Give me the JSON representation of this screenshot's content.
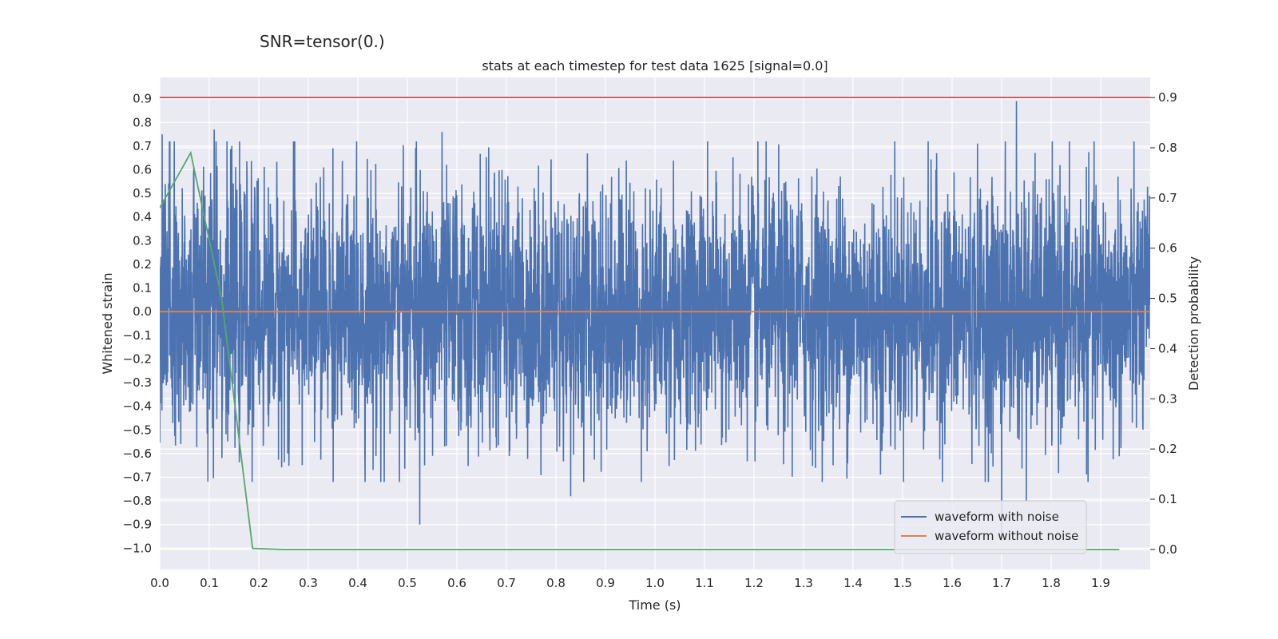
{
  "suptitle": "SNR=tensor(0.)",
  "chart_data": {
    "type": "line",
    "title": "stats at each timestep for test data 1625 [signal=0.0]",
    "xlabel": "Time (s)",
    "ylabel": "Whitened strain",
    "y2label": "Detection probability",
    "xlim": [
      0.0,
      2.0
    ],
    "ylim": [
      -1.09,
      0.99
    ],
    "y2lim": [
      -0.04,
      0.94
    ],
    "x_ticks": [
      0.0,
      0.1,
      0.2,
      0.3,
      0.4,
      0.5,
      0.6,
      0.7,
      0.8,
      0.9,
      1.0,
      1.1,
      1.2,
      1.3,
      1.4,
      1.5,
      1.6,
      1.7,
      1.8,
      1.9
    ],
    "x_tick_labels": [
      "0.0",
      "0.1",
      "0.2",
      "0.3",
      "0.4",
      "0.5",
      "0.6",
      "0.7",
      "0.8",
      "0.9",
      "1.0",
      "1.1",
      "1.2",
      "1.3",
      "1.4",
      "1.5",
      "1.6",
      "1.7",
      "1.8",
      "1.9"
    ],
    "y_ticks": [
      0.9,
      0.8,
      0.7,
      0.6,
      0.5,
      0.4,
      0.3,
      0.2,
      0.1,
      0.0,
      -0.1,
      -0.2,
      -0.3,
      -0.4,
      -0.5,
      -0.6,
      -0.7,
      -0.8,
      -0.9,
      -1.0
    ],
    "y_tick_labels": [
      "0.9",
      "0.8",
      "0.7",
      "0.6",
      "0.5",
      "0.4",
      "0.3",
      "0.2",
      "0.1",
      "0.0",
      "−0.1",
      "−0.2",
      "−0.3",
      "−0.4",
      "−0.5",
      "−0.6",
      "−0.7",
      "−0.8",
      "−0.9",
      "−1.0"
    ],
    "y2_ticks": [
      0.9,
      0.8,
      0.7,
      0.6,
      0.5,
      0.4,
      0.3,
      0.2,
      0.1,
      0.0
    ],
    "y2_tick_labels": [
      "0.9",
      "0.8",
      "0.7",
      "0.6",
      "0.5",
      "0.4",
      "0.3",
      "0.2",
      "0.1",
      "0.0"
    ],
    "grid": true,
    "legend_position": "lower-right",
    "series": [
      {
        "name": "waveform with noise",
        "color": "#4c72b0",
        "axis": "left",
        "x_range": [
          0.0,
          2.0
        ],
        "amplitude_std": 0.27,
        "n_samples": 4096,
        "peaks": [
          {
            "x": 0.005,
            "y": 0.75
          },
          {
            "x": 0.11,
            "y": 0.77
          },
          {
            "x": 0.57,
            "y": 0.76
          },
          {
            "x": 1.73,
            "y": 0.89
          },
          {
            "x": 0.525,
            "y": -0.9
          },
          {
            "x": 1.7,
            "y": -0.97
          },
          {
            "x": 0.83,
            "y": -0.78
          },
          {
            "x": 1.75,
            "y": -0.8
          }
        ]
      },
      {
        "name": "waveform without noise",
        "color": "#dd8452",
        "axis": "left",
        "x": [
          0.0,
          2.0
        ],
        "y": [
          0.0,
          0.0
        ]
      },
      {
        "name": "",
        "color": "#55a868",
        "axis": "right",
        "x": [
          0.0,
          0.0625,
          0.125,
          0.1875,
          0.25,
          0.3125,
          1.9375
        ],
        "y": [
          0.68,
          0.79,
          0.5,
          0.002,
          0.0,
          0.0,
          0.0
        ]
      },
      {
        "name": "",
        "color": "#c44e52",
        "axis": "right",
        "x": [
          0.0,
          2.0
        ],
        "y": [
          0.9,
          0.9
        ]
      }
    ]
  }
}
